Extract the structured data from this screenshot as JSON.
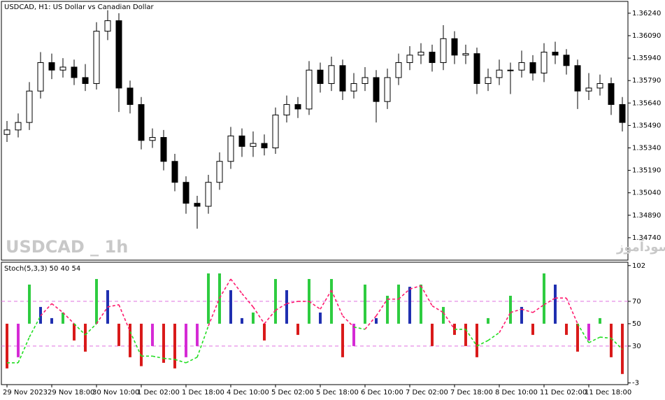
{
  "chart_data": [
    {
      "type": "candlestick",
      "title": "USDCAD, H1:  US Dollar vs Canadian Dollar",
      "annotations": [
        "USDCAD _ 1h",
        "انتشار در سایت سودآموز"
      ],
      "categories": [
        "29 Nov 2023",
        null,
        null,
        null,
        "29 Nov 18:00",
        null,
        null,
        null,
        "30 Nov 10:00",
        null,
        null,
        null,
        "1 Dec 02:00",
        null,
        null,
        null,
        "1 Dec 18:00",
        null,
        null,
        null,
        "4 Dec 10:00",
        null,
        null,
        null,
        "5 Dec 02:00",
        null,
        null,
        null,
        "5 Dec 18:00",
        null,
        null,
        null,
        "6 Dec 10:00",
        null,
        null,
        null,
        "7 Dec 02:00",
        null,
        null,
        null,
        "7 Dec 18:00",
        null,
        null,
        null,
        "8 Dec 10:00",
        null,
        null,
        null,
        "11 Dec 02:00",
        null,
        null,
        null,
        "11 Dec 18:00",
        null,
        null,
        null
      ],
      "open": [
        1.3543,
        1.3546,
        1.3551,
        1.3572,
        1.3591,
        1.3586,
        1.3588,
        1.3581,
        1.3577,
        1.3612,
        1.3619,
        1.3574,
        1.3563,
        1.3539,
        1.3541,
        1.3525,
        1.3511,
        1.3497,
        1.3495,
        1.3511,
        1.3525,
        1.3542,
        1.3535,
        1.3537,
        1.3534,
        1.3556,
        1.3563,
        1.356,
        1.3586,
        1.3577,
        1.3589,
        1.3572,
        1.3577,
        1.3581,
        1.3565,
        1.3581,
        1.3591,
        1.3596,
        1.3598,
        1.3591,
        1.3607,
        1.3596,
        1.3597,
        1.3577,
        1.3581,
        1.3586,
        1.3586,
        1.3591,
        1.3584,
        1.3598,
        1.3596,
        1.3589,
        1.3572,
        1.3574,
        1.3577,
        1.3563
      ],
      "high": [
        1.3552,
        1.3557,
        1.3578,
        1.3598,
        1.3597,
        1.3594,
        1.3593,
        1.359,
        1.3618,
        1.3626,
        1.3624,
        1.3579,
        1.3568,
        1.3547,
        1.3546,
        1.353,
        1.3515,
        1.3502,
        1.3516,
        1.3531,
        1.3548,
        1.3547,
        1.3545,
        1.3543,
        1.3561,
        1.3569,
        1.3568,
        1.3592,
        1.3591,
        1.3595,
        1.3593,
        1.3584,
        1.3588,
        1.3586,
        1.3587,
        1.3597,
        1.3602,
        1.3604,
        1.3603,
        1.3616,
        1.3612,
        1.3603,
        1.3601,
        1.3587,
        1.3593,
        1.3591,
        1.3599,
        1.3596,
        1.3604,
        1.3605,
        1.36,
        1.3593,
        1.3584,
        1.3583,
        1.3581,
        1.3568
      ],
      "low": [
        1.3538,
        1.3541,
        1.3546,
        1.3567,
        1.358,
        1.3581,
        1.3576,
        1.3572,
        1.3573,
        1.3606,
        1.3558,
        1.3557,
        1.3533,
        1.3534,
        1.3519,
        1.3505,
        1.349,
        1.348,
        1.349,
        1.3506,
        1.352,
        1.3528,
        1.3528,
        1.3529,
        1.353,
        1.3551,
        1.3554,
        1.3556,
        1.3571,
        1.3572,
        1.3566,
        1.3567,
        1.3572,
        1.3551,
        1.356,
        1.3576,
        1.3586,
        1.359,
        1.3585,
        1.3586,
        1.359,
        1.359,
        1.357,
        1.3572,
        1.3576,
        1.357,
        1.3581,
        1.3579,
        1.3578,
        1.359,
        1.3583,
        1.356,
        1.3566,
        1.3569,
        1.3556,
        1.3545
      ],
      "close": [
        1.3546,
        1.3551,
        1.3572,
        1.3591,
        1.3586,
        1.3588,
        1.3581,
        1.3577,
        1.3612,
        1.3619,
        1.3574,
        1.3563,
        1.3539,
        1.3541,
        1.3525,
        1.3511,
        1.3497,
        1.3495,
        1.3511,
        1.3525,
        1.3542,
        1.3535,
        1.3537,
        1.3534,
        1.3556,
        1.3563,
        1.356,
        1.3586,
        1.3577,
        1.3589,
        1.3572,
        1.3577,
        1.3581,
        1.3565,
        1.3581,
        1.3591,
        1.3596,
        1.3598,
        1.3591,
        1.3607,
        1.3596,
        1.3597,
        1.3577,
        1.3581,
        1.3586,
        1.3586,
        1.3591,
        1.3584,
        1.3598,
        1.3596,
        1.3589,
        1.3572,
        1.3574,
        1.3577,
        1.3563,
        1.3551
      ],
      "up_color": "#ffffff",
      "down_color": "#000000",
      "line_color": "#000000",
      "ylim": [
        1.3459,
        1.36319
      ],
      "yticks": [
        {
          "value": 1.3624,
          "label": "1.36240"
        },
        {
          "value": 1.3609,
          "label": "1.36090"
        },
        {
          "value": 1.3594,
          "label": "1.35940"
        },
        {
          "value": 1.3579,
          "label": "1.35790"
        },
        {
          "value": 1.3564,
          "label": "1.35640"
        },
        {
          "value": 1.3549,
          "label": "1.35490"
        },
        {
          "value": 1.3534,
          "label": "1.35340"
        },
        {
          "value": 1.3519,
          "label": "1.35190"
        },
        {
          "value": 1.3504,
          "label": "1.35040"
        },
        {
          "value": 1.3489,
          "label": "1.34890"
        },
        {
          "value": 1.3474,
          "label": "1.34740"
        }
      ]
    },
    {
      "type": "stochastic",
      "title": "Stoch(5,3,3) 50 40 54",
      "base": 50,
      "values": [
        10,
        20,
        85,
        65,
        55,
        60,
        35,
        25,
        90,
        80,
        30,
        20,
        12,
        30,
        15,
        10,
        20,
        30,
        95,
        95,
        80,
        55,
        60,
        35,
        90,
        80,
        40,
        90,
        60,
        90,
        20,
        30,
        85,
        55,
        75,
        85,
        83,
        85,
        30,
        65,
        40,
        30,
        20,
        55,
        50,
        75,
        65,
        40,
        95,
        85,
        40,
        25,
        35,
        55,
        20,
        5
      ],
      "signal": [
        15,
        15,
        38,
        57,
        68,
        60,
        50,
        40,
        50,
        65,
        67,
        43,
        21,
        21,
        19,
        18,
        15,
        20,
        48,
        73,
        90,
        77,
        65,
        50,
        62,
        68,
        70,
        70,
        63,
        80,
        57,
        47,
        45,
        57,
        72,
        72,
        81,
        84,
        66,
        60,
        45,
        45,
        30,
        35,
        42,
        60,
        63,
        60,
        67,
        73,
        73,
        50,
        33,
        38,
        37,
        27
      ],
      "colors": {
        "rise_above": "#2ecc40",
        "fall_above": "#1f2fb0",
        "fall_below": "#d91a1a",
        "rise_below": "#d52ad5",
        "signal_above": "#ff1a6e",
        "signal_below": "#22dd22",
        "level": "#e070e0"
      },
      "levels": [
        70,
        30
      ],
      "ylim": [
        -4.5,
        105
      ],
      "yticks": [
        102,
        70,
        50,
        30,
        -3
      ]
    }
  ]
}
